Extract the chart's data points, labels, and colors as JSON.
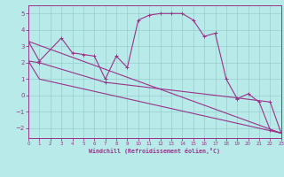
{
  "xlabel": "Windchill (Refroidissement éolien,°C)",
  "bg_color": "#b8eaea",
  "grid_color": "#99cccc",
  "line_color": "#993388",
  "xlim": [
    0,
    23
  ],
  "ylim": [
    -2.6,
    5.5
  ],
  "yticks": [
    -2,
    -1,
    0,
    1,
    2,
    3,
    4,
    5
  ],
  "xticks": [
    0,
    1,
    2,
    3,
    4,
    5,
    6,
    7,
    8,
    9,
    10,
    11,
    12,
    13,
    14,
    15,
    16,
    17,
    18,
    19,
    20,
    21,
    22,
    23
  ],
  "series": [
    {
      "x": [
        0,
        1,
        3,
        4,
        5,
        6,
        7,
        8,
        9,
        10,
        11,
        12,
        13,
        14,
        15,
        16,
        17,
        18,
        19,
        20,
        21,
        22,
        23
      ],
      "y": [
        3.3,
        2.1,
        3.5,
        2.6,
        2.5,
        2.4,
        1.0,
        2.4,
        1.7,
        4.6,
        4.9,
        5.0,
        5.0,
        5.0,
        4.6,
        3.6,
        3.8,
        1.0,
        -0.2,
        0.1,
        -0.4,
        -2.1,
        -2.3
      ],
      "has_marker": true
    },
    {
      "x": [
        0,
        23
      ],
      "y": [
        3.3,
        -2.3
      ],
      "has_marker": false
    },
    {
      "x": [
        0,
        1,
        7,
        19,
        22,
        23
      ],
      "y": [
        2.1,
        2.0,
        0.8,
        -0.15,
        -0.4,
        -2.3
      ],
      "has_marker": true
    },
    {
      "x": [
        0,
        1,
        23
      ],
      "y": [
        2.1,
        1.0,
        -2.3
      ],
      "has_marker": false
    }
  ]
}
